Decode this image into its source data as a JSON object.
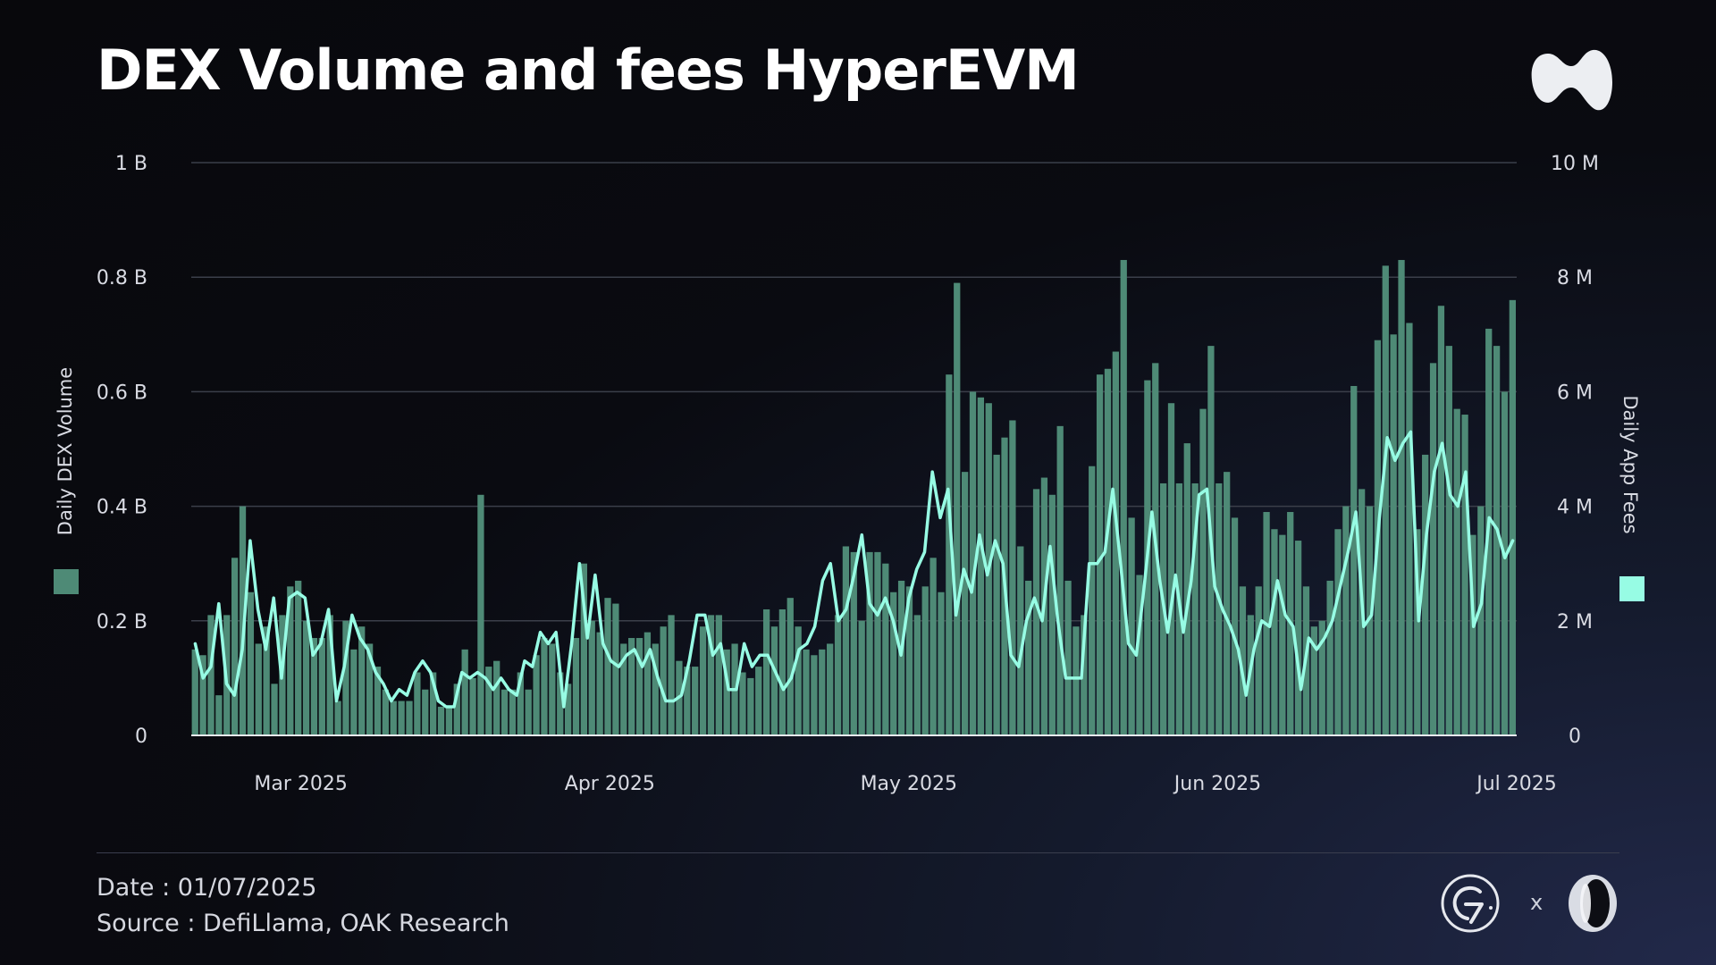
{
  "header": {
    "title": "DEX Volume and fees HyperEVM"
  },
  "footer": {
    "date_text": "Date : 01/07/2025",
    "source_text": "Source : DefiLlama, OAK Research",
    "separator": "x"
  },
  "icons": {
    "brand": "hyperliquid-logo-icon",
    "partner_1": "g7-logo-icon",
    "partner_2": "oak-logo-icon"
  },
  "colors": {
    "background": "#0a0b11",
    "bar": "#4e8a76",
    "line": "#97fce4",
    "grid": "#3b3f4a",
    "axis_text": "#d9dbe3"
  },
  "chart_data": {
    "type": "bar",
    "title": "DEX Volume and fees HyperEVM",
    "y_left": {
      "label": "Daily DEX Volume",
      "ticks": [
        "0",
        "0.2 B",
        "0.4 B",
        "0.6 B",
        "0.8 B",
        "1 B"
      ],
      "range": [
        0,
        1000000000
      ]
    },
    "y_right": {
      "label": "Daily App Fees",
      "ticks": [
        "0",
        "2 M",
        "4 M",
        "6 M",
        "8 M",
        "10 M"
      ],
      "range": [
        0,
        10000000
      ]
    },
    "x_ticks": [
      {
        "label": "Mar 2025",
        "date": "2025-03-01"
      },
      {
        "label": "Apr 2025",
        "date": "2025-04-01"
      },
      {
        "label": "May 2025",
        "date": "2025-05-01"
      },
      {
        "label": "Jun 2025",
        "date": "2025-06-01"
      },
      {
        "label": "Jul 2025",
        "date": "2025-07-01"
      }
    ],
    "x_range": [
      "2025-02-18",
      "2025-07-01"
    ],
    "grid": true,
    "legend": "axis-side swatches",
    "series": [
      {
        "name": "Daily DEX Volume",
        "kind": "bar",
        "axis": "left",
        "unit": "USD",
        "values": [
          0.15,
          0.14,
          0.21,
          0.07,
          0.21,
          0.31,
          0.4,
          0.25,
          0.16,
          0.19,
          0.09,
          0.21,
          0.26,
          0.27,
          0.2,
          0.17,
          0.17,
          0.21,
          0.06,
          0.2,
          0.15,
          0.19,
          0.16,
          0.12,
          0.08,
          0.06,
          0.06,
          0.06,
          0.11,
          0.08,
          0.11,
          0.05,
          0.05,
          0.09,
          0.15,
          0.1,
          0.42,
          0.12,
          0.13,
          0.08,
          0.08,
          0.11,
          0.08,
          0.14,
          0.17,
          0.16,
          0.11,
          0.09,
          0.17,
          0.3,
          0.2,
          0.18,
          0.24,
          0.23,
          0.16,
          0.17,
          0.17,
          0.18,
          0.16,
          0.19,
          0.21,
          0.13,
          0.12,
          0.12,
          0.19,
          0.21,
          0.21,
          0.15,
          0.16,
          0.11,
          0.1,
          0.12,
          0.22,
          0.19,
          0.22,
          0.24,
          0.19,
          0.15,
          0.14,
          0.15,
          0.16,
          0.21,
          0.33,
          0.32,
          0.2,
          0.32,
          0.32,
          0.3,
          0.25,
          0.27,
          0.26,
          0.21,
          0.26,
          0.31,
          0.25,
          0.63,
          0.79,
          0.46,
          0.6,
          0.59,
          0.58,
          0.49,
          0.52,
          0.55,
          0.33,
          0.27,
          0.43,
          0.45,
          0.42,
          0.54,
          0.27,
          0.19,
          0.21,
          0.47,
          0.63,
          0.64,
          0.67,
          0.83,
          0.38,
          0.28,
          0.62,
          0.65,
          0.44,
          0.58,
          0.44,
          0.51,
          0.44,
          0.57,
          0.68,
          0.44,
          0.46,
          0.38,
          0.26,
          0.21,
          0.26,
          0.39,
          0.36,
          0.35,
          0.39,
          0.34,
          0.26,
          0.19,
          0.2,
          0.27,
          0.36,
          0.4,
          0.61,
          0.43,
          0.4,
          0.69,
          0.82,
          0.7,
          0.83,
          0.72,
          0.36,
          0.49,
          0.65,
          0.75,
          0.68,
          0.57,
          0.56,
          0.35,
          0.4,
          0.71,
          0.68,
          0.6,
          0.76
        ],
        "value_scale": "billions"
      },
      {
        "name": "Daily App Fees",
        "kind": "line",
        "axis": "right",
        "unit": "USD",
        "values": [
          1.6,
          1.0,
          1.2,
          2.3,
          0.9,
          0.7,
          1.5,
          3.4,
          2.2,
          1.5,
          2.4,
          1.0,
          2.4,
          2.5,
          2.4,
          1.4,
          1.6,
          2.2,
          0.6,
          1.2,
          2.1,
          1.7,
          1.5,
          1.1,
          0.9,
          0.6,
          0.8,
          0.7,
          1.1,
          1.3,
          1.1,
          0.6,
          0.5,
          0.5,
          1.1,
          1.0,
          1.1,
          1.0,
          0.8,
          1.0,
          0.8,
          0.7,
          1.3,
          1.2,
          1.8,
          1.6,
          1.8,
          0.5,
          1.6,
          3.0,
          1.7,
          2.8,
          1.6,
          1.3,
          1.2,
          1.4,
          1.5,
          1.2,
          1.5,
          1.0,
          0.6,
          0.6,
          0.7,
          1.3,
          2.1,
          2.1,
          1.4,
          1.6,
          0.8,
          0.8,
          1.6,
          1.2,
          1.4,
          1.4,
          1.1,
          0.8,
          1.0,
          1.5,
          1.6,
          1.9,
          2.7,
          3.0,
          2.0,
          2.2,
          2.8,
          3.5,
          2.3,
          2.1,
          2.4,
          2.0,
          1.4,
          2.4,
          2.9,
          3.2,
          4.6,
          3.8,
          4.3,
          2.1,
          2.9,
          2.5,
          3.5,
          2.8,
          3.4,
          3.0,
          1.4,
          1.2,
          2.0,
          2.4,
          2.0,
          3.3,
          2.0,
          1.0,
          1.0,
          1.0,
          3.0,
          3.0,
          3.2,
          4.3,
          3.0,
          1.6,
          1.4,
          2.6,
          3.9,
          2.7,
          1.8,
          2.8,
          1.8,
          2.7,
          4.2,
          4.3,
          2.6,
          2.2,
          1.9,
          1.5,
          0.7,
          1.5,
          2.0,
          1.9,
          2.7,
          2.1,
          1.9,
          0.8,
          1.7,
          1.5,
          1.7,
          2.0,
          2.6,
          3.2,
          3.9,
          1.9,
          2.1,
          3.8,
          5.2,
          4.8,
          5.1,
          5.3,
          2.0,
          3.5,
          4.6,
          5.1,
          4.2,
          4.0,
          4.6,
          1.9,
          2.3,
          3.8,
          3.6,
          3.1,
          3.4
        ],
        "value_scale": "millions"
      }
    ]
  }
}
